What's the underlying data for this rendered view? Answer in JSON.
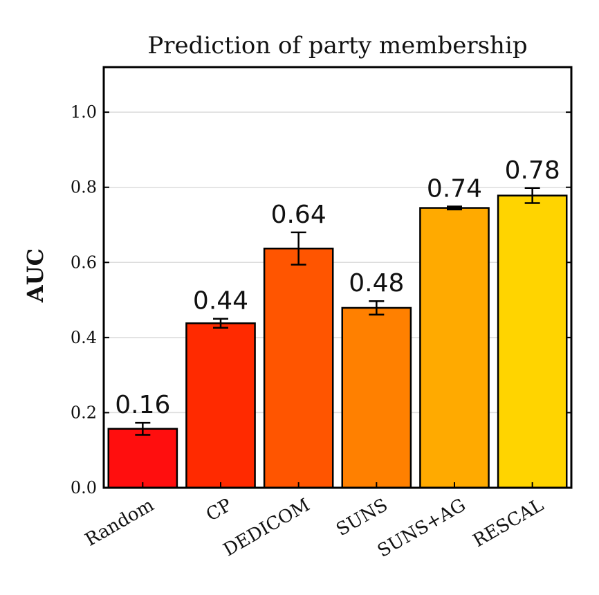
{
  "chart_data": {
    "type": "bar",
    "title": "Prediction of party membership",
    "xlabel": "",
    "ylabel": "AUC",
    "ylim": [
      0.0,
      1.12
    ],
    "yticks": [
      0.0,
      0.2,
      0.4,
      0.6,
      0.8,
      1.0
    ],
    "ytick_labels": [
      "0.0",
      "0.2",
      "0.4",
      "0.6",
      "0.8",
      "1.0"
    ],
    "grid": true,
    "categories": [
      "Random",
      "CP",
      "DEDICOM",
      "SUNS",
      "SUNS+AG",
      "RESCAL"
    ],
    "values": [
      0.157,
      0.438,
      0.637,
      0.479,
      0.745,
      0.778
    ],
    "errors": [
      0.016,
      0.012,
      0.043,
      0.018,
      0.004,
      0.02
    ],
    "data_labels": [
      "0.16",
      "0.44",
      "0.64",
      "0.48",
      "0.74",
      "0.78"
    ],
    "colors": [
      "#ff0e0e",
      "#ff2a00",
      "#ff5500",
      "#ff8000",
      "#ffaa00",
      "#ffd400"
    ]
  }
}
